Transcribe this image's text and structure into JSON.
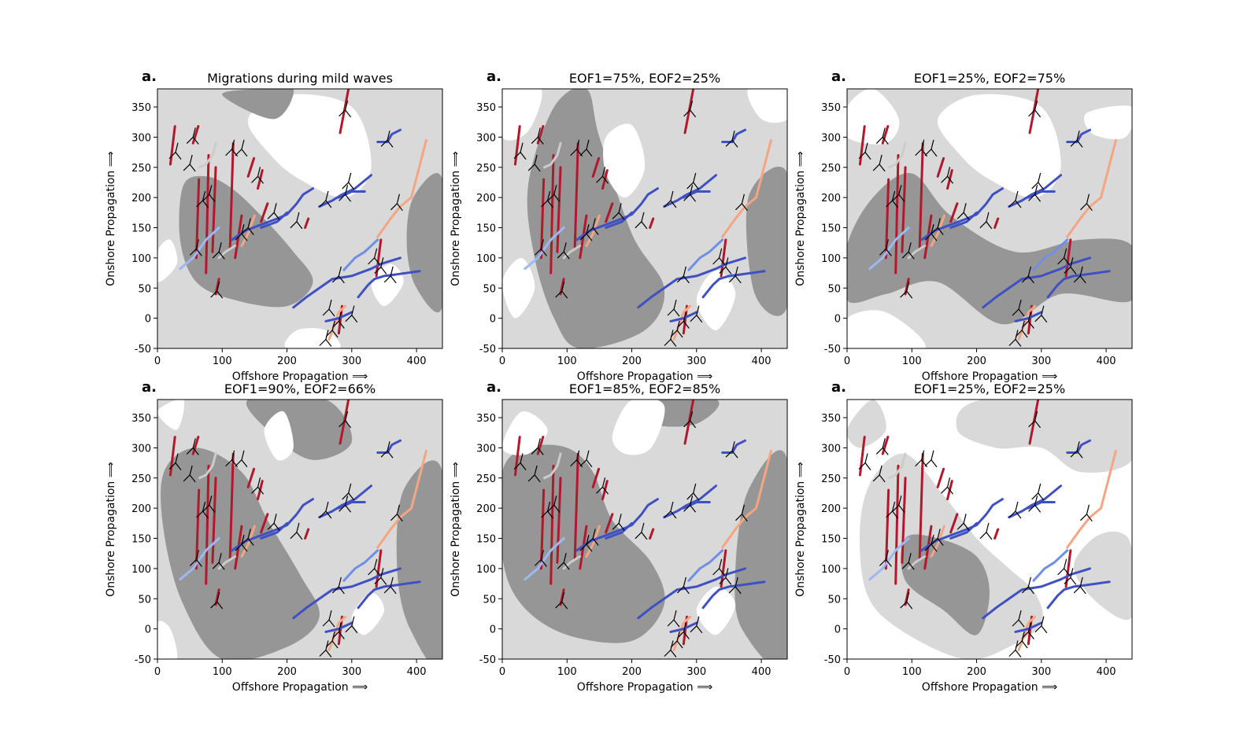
{
  "figure": {
    "panel_letter": "a.",
    "xlabel": "Offshore Propagation ⟹",
    "ylabel": "Onshore Propagation ⟹",
    "xticks": [
      0,
      100,
      200,
      300,
      400
    ],
    "yticks": [
      -50,
      0,
      50,
      100,
      150,
      200,
      250,
      300,
      350
    ],
    "colors": {
      "dark_region": "#969696",
      "light_region": "#d9d9d9",
      "background_region": "#ffffff",
      "arrow_glyph": "#000000"
    }
  },
  "panels": [
    {
      "title": "Migrations during mild waves"
    },
    {
      "title": "EOF1=75%, EOF2=25%"
    },
    {
      "title": "EOF1=25%, EOF2=75%"
    },
    {
      "title": "EOF1=90%, EOF2=66%"
    },
    {
      "title": "EOF1=85%, EOF2=85%"
    },
    {
      "title": "EOF1=25%, EOF2=25%"
    }
  ],
  "chart_data": {
    "type": "line",
    "xlim": [
      0,
      440
    ],
    "ylim": [
      -50,
      380
    ],
    "grid": false,
    "background": "three-level shaded field (dark grey, light grey, white) varying by panel",
    "series_shared_across_panels": [
      {
        "color": "#b2182b",
        "x": [
          20,
          27
        ],
        "y": [
          255,
          318
        ]
      },
      {
        "color": "#b2182b",
        "x": [
          55,
          63
        ],
        "y": [
          290,
          318
        ]
      },
      {
        "color": "#b2182b",
        "x": [
          60,
          64
        ],
        "y": [
          100,
          230
        ]
      },
      {
        "color": "#b2182b",
        "x": [
          75,
          79
        ],
        "y": [
          75,
          270
        ]
      },
      {
        "color": "#b2182b",
        "x": [
          85,
          90
        ],
        "y": [
          110,
          250
        ]
      },
      {
        "color": "#b2182b",
        "x": [
          112,
          117
        ],
        "y": [
          115,
          290
        ]
      },
      {
        "color": "#b2182b",
        "x": [
          120,
          130
        ],
        "y": [
          100,
          170
        ]
      },
      {
        "color": "#b2182b",
        "x": [
          140,
          149
        ],
        "y": [
          235,
          265
        ]
      },
      {
        "color": "#b2182b",
        "x": [
          155,
          162
        ],
        "y": [
          215,
          245
        ]
      },
      {
        "color": "#b2182b",
        "x": [
          160,
          170
        ],
        "y": [
          160,
          190
        ]
      },
      {
        "color": "#b2182b",
        "x": [
          228,
          233
        ],
        "y": [
          150,
          165
        ]
      },
      {
        "color": "#b2182b",
        "x": [
          282,
          295
        ],
        "y": [
          307,
          380
        ]
      },
      {
        "color": "#b2182b",
        "x": [
          338,
          345
        ],
        "y": [
          70,
          130
        ]
      },
      {
        "color": "#b2182b",
        "x": [
          280,
          285
        ],
        "y": [
          -25,
          20
        ]
      },
      {
        "color": "#b2182b",
        "x": [
          90,
          95
        ],
        "y": [
          40,
          65
        ]
      },
      {
        "color": "#f4a582",
        "x": [
          340,
          360,
          375,
          392,
          415
        ],
        "y": [
          135,
          165,
          185,
          200,
          295
        ]
      },
      {
        "color": "#f4a582",
        "x": [
          265,
          272,
          280,
          290
        ],
        "y": [
          -35,
          -15,
          10,
          20
        ]
      },
      {
        "color": "#f4a582",
        "x": [
          130,
          140,
          150
        ],
        "y": [
          120,
          140,
          170
        ]
      },
      {
        "color": "#3f51c2",
        "x": [
          210,
          230,
          250,
          270,
          300,
          330,
          345,
          375
        ],
        "y": [
          18,
          35,
          50,
          65,
          70,
          82,
          90,
          100
        ]
      },
      {
        "color": "#3f51c2",
        "x": [
          310,
          325,
          335,
          350,
          365,
          405
        ],
        "y": [
          35,
          55,
          65,
          70,
          72,
          78
        ]
      },
      {
        "color": "#3f51c2",
        "x": [
          115,
          135,
          160,
          185,
          200,
          215,
          225,
          240
        ],
        "y": [
          130,
          145,
          155,
          165,
          172,
          190,
          205,
          215
        ]
      },
      {
        "color": "#3f51c2",
        "x": [
          260,
          280,
          300
        ],
        "y": [
          -5,
          0,
          10
        ]
      },
      {
        "color": "#3f51c2",
        "x": [
          340,
          355,
          362,
          375
        ],
        "y": [
          292,
          292,
          305,
          312
        ]
      },
      {
        "color": "#3f51c2",
        "x": [
          250,
          270,
          285,
          305,
          330
        ],
        "y": [
          185,
          195,
          205,
          215,
          237
        ]
      },
      {
        "color": "#3f51c2",
        "x": [
          280,
          300,
          320
        ],
        "y": [
          200,
          210,
          210
        ]
      },
      {
        "color": "#3f51c2",
        "x": [
          160,
          185,
          200
        ],
        "y": [
          150,
          160,
          175
        ]
      },
      {
        "color": "#6f8ee6",
        "x": [
          288,
          305,
          320,
          340
        ],
        "y": [
          80,
          100,
          110,
          130
        ]
      },
      {
        "color": "#9cb8f5",
        "x": [
          35,
          55,
          75,
          95
        ],
        "y": [
          82,
          100,
          130,
          150
        ]
      },
      {
        "color": "#cccccc",
        "x": [
          65,
          75,
          85,
          90
        ],
        "y": [
          250,
          255,
          270,
          290
        ]
      },
      {
        "color": "#cccccc",
        "x": [
          95,
          105,
          120
        ],
        "y": [
          100,
          110,
          120
        ]
      }
    ],
    "arrow_markers": [
      [
        28,
        275
      ],
      [
        55,
        300
      ],
      [
        50,
        255
      ],
      [
        70,
        195
      ],
      [
        80,
        205
      ],
      [
        60,
        115
      ],
      [
        95,
        110
      ],
      [
        92,
        45
      ],
      [
        115,
        280
      ],
      [
        130,
        280
      ],
      [
        130,
        140
      ],
      [
        140,
        150
      ],
      [
        155,
        235
      ],
      [
        180,
        175
      ],
      [
        215,
        160
      ],
      [
        260,
        195
      ],
      [
        290,
        205
      ],
      [
        295,
        225
      ],
      [
        290,
        345
      ],
      [
        355,
        295
      ],
      [
        370,
        190
      ],
      [
        335,
        100
      ],
      [
        345,
        85
      ],
      [
        360,
        70
      ],
      [
        280,
        70
      ],
      [
        265,
        15
      ],
      [
        280,
        -5
      ],
      [
        300,
        5
      ],
      [
        260,
        -35
      ],
      [
        270,
        -20
      ]
    ]
  }
}
